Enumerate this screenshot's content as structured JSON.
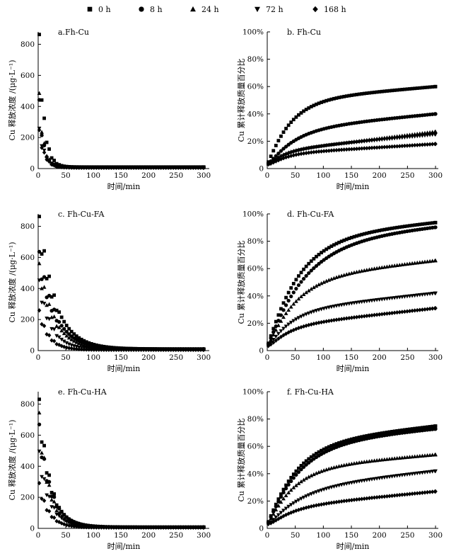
{
  "legend": {
    "items": [
      {
        "label": "0 h",
        "marker": "square"
      },
      {
        "label": "8 h",
        "marker": "circle"
      },
      {
        "label": "24 h",
        "marker": "triangle-up"
      },
      {
        "label": "72 h",
        "marker": "triangle-down"
      },
      {
        "label": "168 h",
        "marker": "diamond"
      }
    ]
  },
  "chart_data": [
    {
      "id": "a",
      "type": "scatter",
      "title": "a.Fh-Cu",
      "xlabel": "时间/min",
      "ylabel": "Cu 释放浓度 /(μg·L⁻¹)",
      "xlim": [
        0,
        310
      ],
      "ylim": [
        0,
        880
      ],
      "xticks": [
        0,
        50,
        100,
        150,
        200,
        250,
        300
      ],
      "yticks": [
        0,
        200,
        400,
        600,
        800
      ],
      "ytick_labels": [
        "0",
        "200",
        "400",
        "600",
        "800"
      ],
      "curve": "conc",
      "series": [
        {
          "name": "0 h",
          "marker": "square",
          "peak": 800,
          "tau": 9,
          "base": 10
        },
        {
          "name": "8 h",
          "marker": "circle",
          "peak": 410,
          "tau": 8,
          "base": 8
        },
        {
          "name": "24 h",
          "marker": "triangle-up",
          "peak": 450,
          "tau": 8,
          "base": 8
        },
        {
          "name": "72 h",
          "marker": "triangle-down",
          "peak": 240,
          "tau": 11,
          "base": 6
        },
        {
          "name": "168 h",
          "marker": "diamond",
          "peak": 230,
          "tau": 10,
          "base": 5
        }
      ]
    },
    {
      "id": "b",
      "type": "scatter",
      "title": "b. Fh-Cu",
      "xlabel": "时间/min",
      "ylabel": "Cu 累计释放质量百分比",
      "xlim": [
        0,
        305
      ],
      "ylim": [
        0,
        100
      ],
      "xticks": [
        0,
        50,
        100,
        150,
        200,
        250,
        300
      ],
      "yticks": [
        0,
        20,
        40,
        60,
        80,
        100
      ],
      "ytick_labels": [
        "0",
        "20%",
        "40%",
        "60%",
        "80%",
        "100%"
      ],
      "curve": "cum",
      "series": [
        {
          "name": "0 h",
          "marker": "square",
          "final": 60,
          "tau": 40,
          "lin": 0.35
        },
        {
          "name": "8 h",
          "marker": "circle",
          "final": 40,
          "tau": 45,
          "lin": 0.4
        },
        {
          "name": "24 h",
          "marker": "triangle-up",
          "final": 27,
          "tau": 22,
          "lin": 0.5
        },
        {
          "name": "72 h",
          "marker": "triangle-down",
          "final": 25,
          "tau": 30,
          "lin": 0.4
        },
        {
          "name": "168 h",
          "marker": "diamond",
          "final": 18,
          "tau": 28,
          "lin": 0.25
        }
      ]
    },
    {
      "id": "c",
      "type": "scatter",
      "title": "c. Fh-Cu-FA",
      "xlabel": "时间/min",
      "ylabel": "Cu 释放浓度 /(μg·L⁻¹)",
      "xlim": [
        0,
        310
      ],
      "ylim": [
        0,
        880
      ],
      "xticks": [
        0,
        50,
        100,
        150,
        200,
        250,
        300
      ],
      "yticks": [
        0,
        200,
        400,
        600,
        800
      ],
      "ytick_labels": [
        "0",
        "200",
        "400",
        "600",
        "800"
      ],
      "curve": "conc",
      "series": [
        {
          "name": "0 h",
          "marker": "square",
          "peak": 800,
          "tau": 30,
          "base": 10
        },
        {
          "name": "8 h",
          "marker": "circle",
          "peak": 590,
          "tau": 30,
          "base": 10
        },
        {
          "name": "24 h",
          "marker": "triangle-up",
          "peak": 520,
          "tau": 28,
          "base": 8
        },
        {
          "name": "72 h",
          "marker": "triangle-down",
          "peak": 420,
          "tau": 22,
          "base": 6
        },
        {
          "name": "168 h",
          "marker": "diamond",
          "peak": 240,
          "tau": 18,
          "base": 5
        }
      ]
    },
    {
      "id": "d",
      "type": "scatter",
      "title": "d. Fh-Cu-FA",
      "xlabel": "时间/min",
      "ylabel": "Cu 累计释放质量百分比",
      "xlim": [
        0,
        305
      ],
      "ylim": [
        0,
        100
      ],
      "xticks": [
        0,
        50,
        100,
        150,
        200,
        250,
        300
      ],
      "yticks": [
        0,
        20,
        40,
        60,
        80,
        100
      ],
      "ytick_labels": [
        "0",
        "20%",
        "40%",
        "60%",
        "80%",
        "100%"
      ],
      "curve": "cum",
      "series": [
        {
          "name": "0 h",
          "marker": "square",
          "final": 94,
          "tau": 55,
          "lin": 0.4
        },
        {
          "name": "8 h",
          "marker": "circle",
          "final": 91,
          "tau": 65,
          "lin": 0.4
        },
        {
          "name": "24 h",
          "marker": "triangle-up",
          "final": 66,
          "tau": 50,
          "lin": 0.45
        },
        {
          "name": "72 h",
          "marker": "triangle-down",
          "final": 42,
          "tau": 40,
          "lin": 0.45
        },
        {
          "name": "168 h",
          "marker": "diamond",
          "final": 31,
          "tau": 35,
          "lin": 0.45
        }
      ]
    },
    {
      "id": "e",
      "type": "scatter",
      "title": "e. Fh-Cu-HA",
      "xlabel": "时间/min",
      "ylabel": "Cu 释放浓度 /(μg·L⁻¹)",
      "xlim": [
        0,
        310
      ],
      "ylim": [
        0,
        880
      ],
      "xticks": [
        0,
        50,
        100,
        150,
        200,
        250,
        300
      ],
      "yticks": [
        0,
        200,
        400,
        600,
        800
      ],
      "ytick_labels": [
        "0",
        "200",
        "400",
        "600",
        "800"
      ],
      "curve": "conc",
      "series": [
        {
          "name": "0 h",
          "marker": "square",
          "peak": 770,
          "tau": 20,
          "base": 8
        },
        {
          "name": "8 h",
          "marker": "circle",
          "peak": 620,
          "tau": 22,
          "base": 8
        },
        {
          "name": "24 h",
          "marker": "triangle-up",
          "peak": 690,
          "tau": 18,
          "base": 8
        },
        {
          "name": "72 h",
          "marker": "triangle-down",
          "peak": 460,
          "tau": 20,
          "base": 6
        },
        {
          "name": "168 h",
          "marker": "diamond",
          "peak": 270,
          "tau": 18,
          "base": 5
        }
      ]
    },
    {
      "id": "f",
      "type": "scatter",
      "title": "f. Fh-Cu-HA",
      "xlabel": "时间/min",
      "ylabel": "Cu 累计释放质量百分比",
      "xlim": [
        0,
        305
      ],
      "ylim": [
        0,
        100
      ],
      "xticks": [
        0,
        50,
        100,
        150,
        200,
        250,
        300
      ],
      "yticks": [
        0,
        20,
        40,
        60,
        80,
        100
      ],
      "ytick_labels": [
        "0",
        "20%",
        "40%",
        "60%",
        "80%",
        "100%"
      ],
      "curve": "cum",
      "series": [
        {
          "name": "0 h",
          "marker": "square",
          "final": 75,
          "tau": 50,
          "lin": 0.45
        },
        {
          "name": "8 h",
          "marker": "circle",
          "final": 73,
          "tau": 55,
          "lin": 0.4
        },
        {
          "name": "24 h",
          "marker": "triangle-up",
          "final": 54,
          "tau": 45,
          "lin": 0.35
        },
        {
          "name": "72 h",
          "marker": "triangle-down",
          "final": 42,
          "tau": 55,
          "lin": 0.45
        },
        {
          "name": "168 h",
          "marker": "diamond",
          "final": 27,
          "tau": 40,
          "lin": 0.4
        }
      ]
    }
  ]
}
